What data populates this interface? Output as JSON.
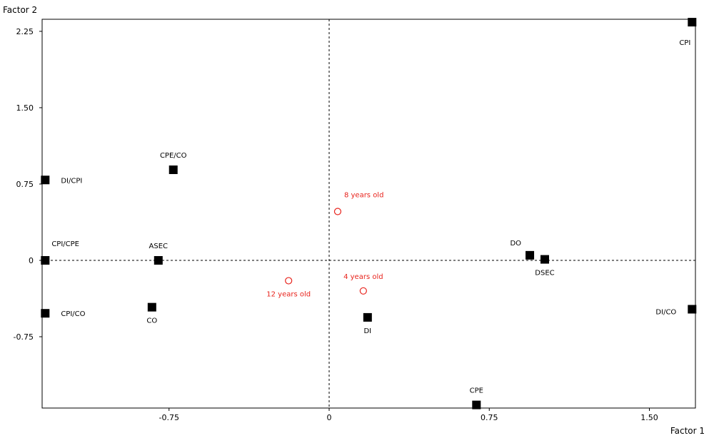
{
  "chart_data": {
    "type": "scatter",
    "xlabel": "Factor 1",
    "ylabel": "Factor 2",
    "xlim": [
      -1.33,
      1.72
    ],
    "ylim": [
      -1.38,
      2.4
    ],
    "xticks": [
      "-0.75",
      "0",
      "0.75",
      "1.50"
    ],
    "xtick_values": [
      -0.75,
      0,
      0.75,
      1.5
    ],
    "yticks": [
      "2.25",
      "1.50",
      "0.75",
      "0",
      "-0.75"
    ],
    "ytick_values": [
      2.25,
      1.5,
      0.75,
      0,
      -0.75
    ],
    "grid": false,
    "reference_lines": {
      "x": 0,
      "y": 0,
      "style": "dashed"
    },
    "series": [
      {
        "marker": "square",
        "color": "#000000",
        "points": [
          {
            "label": "CPI",
            "x": 1.7,
            "y": 2.34,
            "label_pos": "below-left"
          },
          {
            "label": "CPE/CO",
            "x": -0.73,
            "y": 0.89,
            "label_pos": "above"
          },
          {
            "label": "DI/CPI",
            "x": -1.33,
            "y": 0.79,
            "label_pos": "right"
          },
          {
            "label": "CPI/CPE",
            "x": -1.33,
            "y": 0.0,
            "label_pos": "above-right"
          },
          {
            "label": "ASEC",
            "x": -0.8,
            "y": 0.0,
            "label_pos": "above"
          },
          {
            "label": "CPI/CO",
            "x": -1.33,
            "y": -0.52,
            "label_pos": "right"
          },
          {
            "label": "CO",
            "x": -0.83,
            "y": -0.46,
            "label_pos": "below"
          },
          {
            "label": "DO",
            "x": 0.94,
            "y": 0.05,
            "label_pos": "above-left"
          },
          {
            "label": "DSEC",
            "x": 1.01,
            "y": 0.01,
            "label_pos": "below"
          },
          {
            "label": "DI/CO",
            "x": 1.7,
            "y": -0.48,
            "label_pos": "left"
          },
          {
            "label": "DI",
            "x": 0.18,
            "y": -0.56,
            "label_pos": "below"
          },
          {
            "label": "CPE",
            "x": 0.69,
            "y": -1.42,
            "label_pos": "above"
          }
        ]
      },
      {
        "marker": "circle-open",
        "color": "#e8231c",
        "points": [
          {
            "label": "8 years old",
            "x": 0.04,
            "y": 0.48,
            "label_pos": "above-right"
          },
          {
            "label": "4 years old",
            "x": 0.16,
            "y": -0.3,
            "label_pos": "above"
          },
          {
            "label": "12 years old",
            "x": -0.19,
            "y": -0.2,
            "label_pos": "below"
          }
        ]
      }
    ]
  }
}
